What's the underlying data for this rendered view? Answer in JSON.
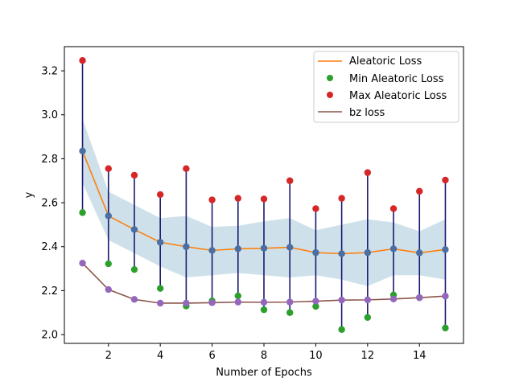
{
  "chart_data": {
    "type": "line",
    "title": "",
    "xlabel": "Number of Epochs",
    "ylabel": "y",
    "xlim": [
      0.3,
      15.7
    ],
    "ylim": [
      1.96,
      3.31
    ],
    "xticks": [
      2,
      4,
      6,
      8,
      10,
      12,
      14
    ],
    "yticks": [
      2.0,
      2.2,
      2.4,
      2.6,
      2.8,
      3.0,
      3.2
    ],
    "ytick_labels": [
      "2.0",
      "2.2",
      "2.4",
      "2.6",
      "2.8",
      "3.0",
      "3.2"
    ],
    "grid": false,
    "legend_position": "top-right",
    "x": [
      1,
      2,
      3,
      4,
      5,
      6,
      7,
      8,
      9,
      10,
      11,
      12,
      13,
      14,
      15
    ],
    "series": [
      {
        "name": "Aleatoric Loss",
        "kind": "line",
        "color": "#ff7f0e",
        "values": [
          2.835,
          2.54,
          2.478,
          2.42,
          2.4,
          2.383,
          2.39,
          2.393,
          2.397,
          2.373,
          2.368,
          2.373,
          2.39,
          2.372,
          2.387
        ]
      },
      {
        "name": "Min Aleatoric Loss",
        "kind": "scatter",
        "color": "#2ca02c",
        "values": [
          2.555,
          2.322,
          2.296,
          2.21,
          2.13,
          2.153,
          2.176,
          2.113,
          2.1,
          2.128,
          2.023,
          2.078,
          2.18,
          2.168,
          2.03
        ]
      },
      {
        "name": "Max Aleatoric Loss",
        "kind": "scatter",
        "color": "#d62728",
        "values": [
          3.247,
          2.755,
          2.725,
          2.637,
          2.755,
          2.613,
          2.62,
          2.617,
          2.7,
          2.573,
          2.62,
          2.737,
          2.573,
          2.652,
          2.703
        ]
      },
      {
        "name": "bz loss",
        "kind": "line",
        "color": "#8c564b",
        "values": [
          2.325,
          2.205,
          2.16,
          2.143,
          2.143,
          2.145,
          2.148,
          2.147,
          2.148,
          2.152,
          2.157,
          2.158,
          2.162,
          2.168,
          2.175
        ]
      }
    ],
    "band": {
      "color": "#a6c8d8",
      "lower": [
        2.69,
        2.43,
        2.37,
        2.31,
        2.26,
        2.27,
        2.28,
        2.27,
        2.26,
        2.27,
        2.25,
        2.22,
        2.27,
        2.27,
        2.25
      ],
      "upper": [
        2.98,
        2.65,
        2.59,
        2.53,
        2.54,
        2.49,
        2.495,
        2.515,
        2.53,
        2.475,
        2.5,
        2.525,
        2.51,
        2.47,
        2.525
      ]
    },
    "error_bar_color": "#191970",
    "mean_marker_color": "#4a6fa5",
    "bz_marker_color": "#9467bd"
  }
}
